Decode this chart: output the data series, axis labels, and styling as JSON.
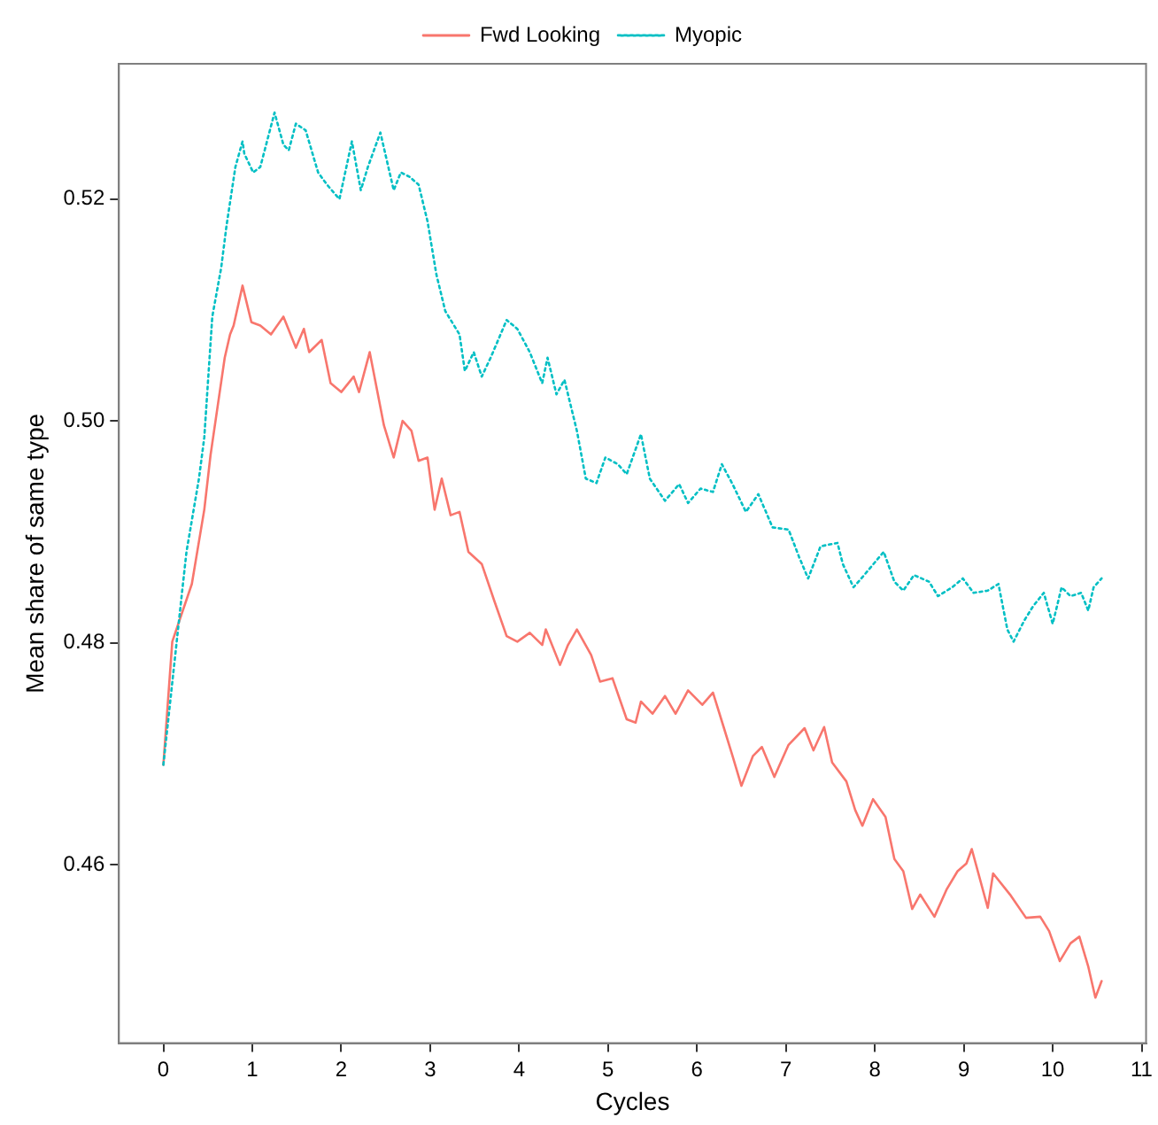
{
  "chart_data": {
    "type": "line",
    "xlabel": "Cycles",
    "ylabel": "Mean share of same type",
    "xlim": [
      -0.5,
      11.05
    ],
    "ylim": [
      0.4439,
      0.5322
    ],
    "xticks": [
      0,
      1,
      2,
      3,
      4,
      5,
      6,
      7,
      8,
      9,
      10,
      11
    ],
    "yticks": [
      0.46,
      0.48,
      {
        "value": 0.5,
        "label": "0.50"
      },
      0.52
    ],
    "grid": false,
    "legend": "top",
    "marker": "none",
    "series": [
      {
        "name": "Fwd Looking",
        "color": "#f8766d",
        "line_style": "solid",
        "x": [
          0,
          0.1,
          0.32,
          0.46,
          0.53,
          0.61,
          0.69,
          0.75,
          0.79,
          0.89,
          0.99,
          1.09,
          1.21,
          1.35,
          1.49,
          1.58,
          1.64,
          1.78,
          1.88,
          2.0,
          2.14,
          2.2,
          2.32,
          2.48,
          2.59,
          2.69,
          2.79,
          2.87,
          2.97,
          3.05,
          3.13,
          3.23,
          3.33,
          3.43,
          3.58,
          3.72,
          3.86,
          3.98,
          4.12,
          4.26,
          4.3,
          4.46,
          4.55,
          4.65,
          4.81,
          4.91,
          5.05,
          5.21,
          5.31,
          5.37,
          5.5,
          5.64,
          5.76,
          5.9,
          6.06,
          6.18,
          6.3,
          6.4,
          6.5,
          6.63,
          6.73,
          6.87,
          7.03,
          7.21,
          7.31,
          7.43,
          7.52,
          7.68,
          7.78,
          7.86,
          7.98,
          8.12,
          8.22,
          8.32,
          8.42,
          8.51,
          8.67,
          8.81,
          8.93,
          9.03,
          9.09,
          9.27,
          9.33,
          9.52,
          9.7,
          9.86,
          9.96,
          10.08,
          10.2,
          10.3,
          10.4,
          10.48,
          10.55
        ],
        "values": [
          0.469,
          0.4801,
          0.4853,
          0.492,
          0.4969,
          0.5013,
          0.5057,
          0.5078,
          0.5086,
          0.5122,
          0.5089,
          0.5086,
          0.5078,
          0.5094,
          0.5066,
          0.5083,
          0.5062,
          0.5073,
          0.5034,
          0.5026,
          0.504,
          0.5026,
          0.5062,
          0.4996,
          0.4967,
          0.5,
          0.4991,
          0.4964,
          0.4967,
          0.492,
          0.4948,
          0.4915,
          0.4918,
          0.4882,
          0.4871,
          0.4838,
          0.4806,
          0.4801,
          0.4809,
          0.4798,
          0.4812,
          0.478,
          0.4798,
          0.4812,
          0.4789,
          0.4765,
          0.4768,
          0.4731,
          0.4728,
          0.4747,
          0.4736,
          0.4752,
          0.4736,
          0.4757,
          0.4744,
          0.4755,
          0.4724,
          0.4698,
          0.4671,
          0.4698,
          0.4706,
          0.4679,
          0.4708,
          0.4723,
          0.4703,
          0.4724,
          0.4692,
          0.4675,
          0.4649,
          0.4635,
          0.4659,
          0.4643,
          0.4605,
          0.4594,
          0.456,
          0.4573,
          0.4553,
          0.4578,
          0.4594,
          0.4601,
          0.4614,
          0.4561,
          0.4592,
          0.4573,
          0.4552,
          0.4553,
          0.454,
          0.4513,
          0.4529,
          0.4535,
          0.4508,
          0.448,
          0.4495
        ]
      },
      {
        "name": "Myopic",
        "color": "#00bfc4",
        "line_style": "dotted",
        "x": [
          0,
          0.22,
          0.26,
          0.4,
          0.46,
          0.55,
          0.65,
          0.71,
          0.81,
          0.89,
          0.91,
          1.01,
          1.09,
          1.25,
          1.35,
          1.41,
          1.49,
          1.6,
          1.74,
          1.84,
          1.98,
          2.12,
          2.22,
          2.3,
          2.44,
          2.59,
          2.67,
          2.77,
          2.87,
          2.97,
          3.07,
          3.17,
          3.33,
          3.39,
          3.49,
          3.58,
          3.68,
          3.86,
          3.98,
          4.12,
          4.26,
          4.32,
          4.42,
          4.51,
          4.65,
          4.75,
          4.87,
          4.97,
          5.11,
          5.21,
          5.37,
          5.47,
          5.64,
          5.8,
          5.9,
          6.04,
          6.18,
          6.28,
          6.4,
          6.55,
          6.69,
          6.85,
          7.03,
          7.15,
          7.25,
          7.39,
          7.58,
          7.64,
          7.76,
          7.88,
          8.1,
          8.22,
          8.32,
          8.44,
          8.61,
          8.71,
          8.87,
          8.99,
          9.11,
          9.27,
          9.39,
          9.49,
          9.56,
          9.68,
          9.78,
          9.9,
          10.0,
          10.1,
          10.2,
          10.32,
          10.4,
          10.46,
          10.55
        ],
        "values": [
          0.469,
          0.4853,
          0.4882,
          0.4948,
          0.4985,
          0.5094,
          0.5138,
          0.5176,
          0.5229,
          0.5252,
          0.5241,
          0.5224,
          0.5229,
          0.5278,
          0.5249,
          0.5244,
          0.5268,
          0.5262,
          0.5224,
          0.5213,
          0.52,
          0.5252,
          0.5208,
          0.5229,
          0.526,
          0.5208,
          0.5224,
          0.522,
          0.5213,
          0.518,
          0.5132,
          0.5099,
          0.5078,
          0.5045,
          0.5062,
          0.504,
          0.5057,
          0.5091,
          0.5083,
          0.5062,
          0.5034,
          0.5057,
          0.5024,
          0.5037,
          0.4991,
          0.4948,
          0.4944,
          0.4967,
          0.4961,
          0.4952,
          0.4988,
          0.4948,
          0.4928,
          0.4943,
          0.4926,
          0.4939,
          0.4936,
          0.4961,
          0.4943,
          0.4918,
          0.4934,
          0.4904,
          0.4902,
          0.4877,
          0.4858,
          0.4887,
          0.489,
          0.4871,
          0.485,
          0.4861,
          0.4882,
          0.4855,
          0.4847,
          0.4861,
          0.4855,
          0.4842,
          0.485,
          0.4858,
          0.4845,
          0.4847,
          0.4853,
          0.4812,
          0.4801,
          0.482,
          0.4833,
          0.4845,
          0.4817,
          0.485,
          0.4842,
          0.4845,
          0.4829,
          0.485,
          0.4858
        ]
      }
    ]
  }
}
